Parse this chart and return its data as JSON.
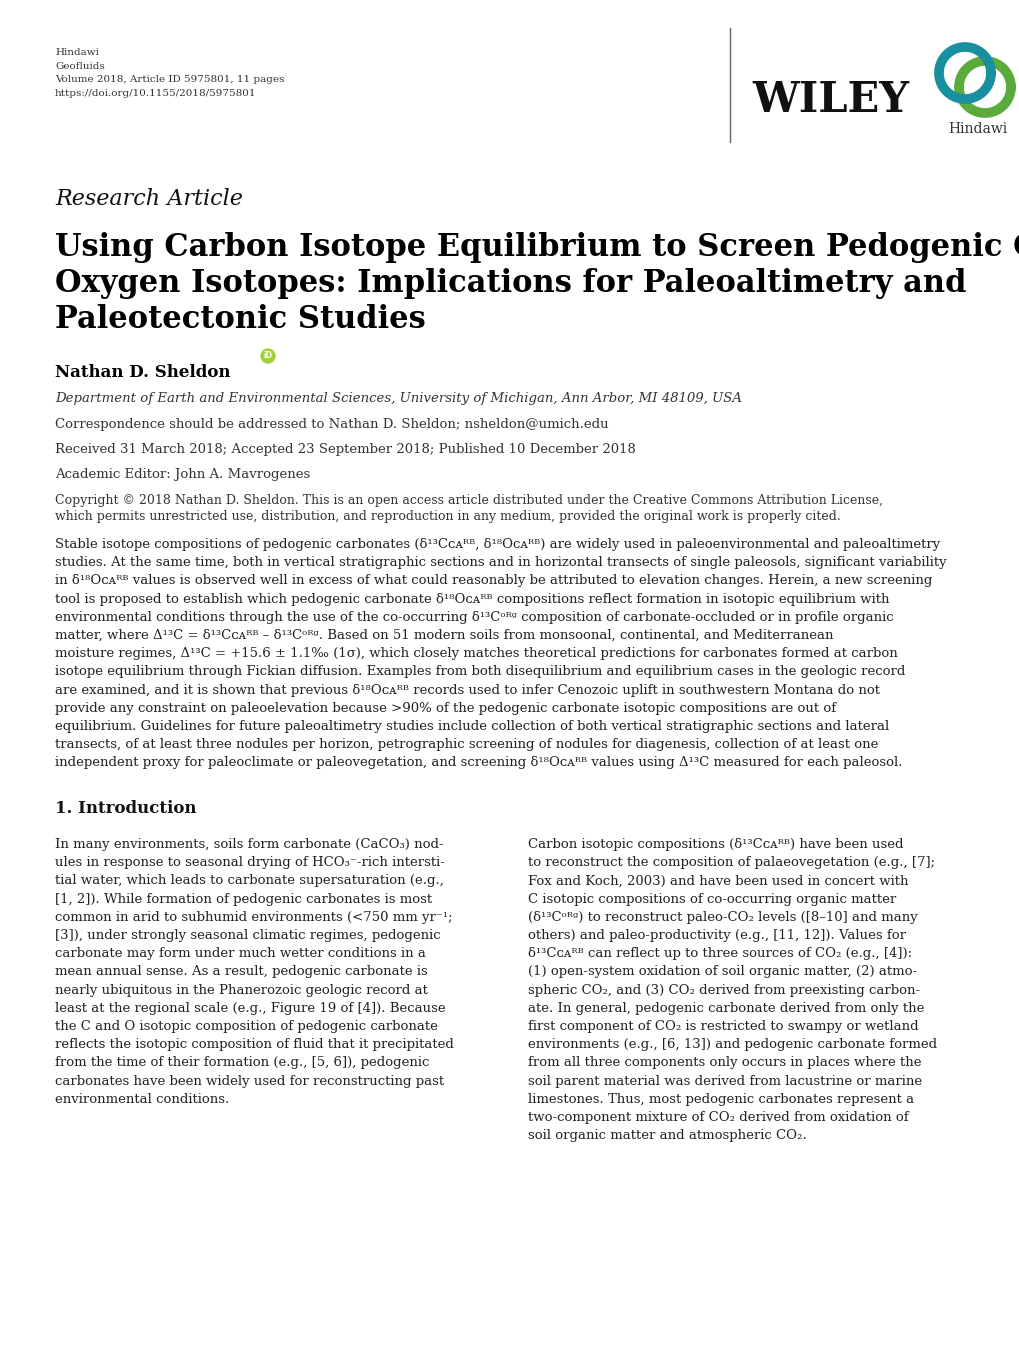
{
  "hindawi_text": "Hindawi\nGeofluids\nVolume 2018, Article ID 5975801, 11 pages\nhttps://doi.org/10.1155/2018/5975801",
  "research_article_label": "Research Article",
  "title_line1": "Using Carbon Isotope Equilibrium to Screen Pedogenic Carbonate",
  "title_line2": "Oxygen Isotopes: Implications for Paleoaltimetry and",
  "title_line3": "Paleotectonic Studies",
  "author": "Nathan D. Sheldon",
  "affiliation": "Department of Earth and Environmental Sciences, University of Michigan, Ann Arbor, MI 48109, USA",
  "correspondence": "Correspondence should be addressed to Nathan D. Sheldon; nsheldon@umich.edu",
  "received": "Received 31 March 2018; Accepted 23 September 2018; Published 10 December 2018",
  "academic_editor": "Academic Editor: John A. Mavrogenes",
  "copyright_line1": "Copyright © 2018 Nathan D. Sheldon. This is an open access article distributed under the Creative Commons Attribution License,",
  "copyright_line2": "which permits unrestricted use, distribution, and reproduction in any medium, provided the original work is properly cited.",
  "abstract_lines": [
    "Stable isotope compositions of pedogenic carbonates (δ¹³Cᴄᴀᴿᴮ, δ¹⁸Oᴄᴀᴿᴮ) are widely used in paleoenvironmental and paleoaltimetry",
    "studies. At the same time, both in vertical stratigraphic sections and in horizontal transects of single paleosols, significant variability",
    "in δ¹⁸Oᴄᴀᴿᴮ values is observed well in excess of what could reasonably be attributed to elevation changes. Herein, a new screening",
    "tool is proposed to establish which pedogenic carbonate δ¹⁸Oᴄᴀᴿᴮ compositions reflect formation in isotopic equilibrium with",
    "environmental conditions through the use of the co-occurring δ¹³Cᵒᴿᵍ composition of carbonate-occluded or in profile organic",
    "matter, where Δ¹³C = δ¹³Cᴄᴀᴿᴮ – δ¹³Cᵒᴿᵍ. Based on 51 modern soils from monsoonal, continental, and Mediterranean",
    "moisture regimes, Δ¹³C = +15.6 ± 1.1‰ (1σ), which closely matches theoretical predictions for carbonates formed at carbon",
    "isotope equilibrium through Fickian diffusion. Examples from both disequilibrium and equilibrium cases in the geologic record",
    "are examined, and it is shown that previous δ¹⁸Oᴄᴀᴿᴮ records used to infer Cenozoic uplift in southwestern Montana do not",
    "provide any constraint on paleoelevation because >90% of the pedogenic carbonate isotopic compositions are out of",
    "equilibrium. Guidelines for future paleoaltimetry studies include collection of both vertical stratigraphic sections and lateral",
    "transects, of at least three nodules per horizon, petrographic screening of nodules for diagenesis, collection of at least one",
    "independent proxy for paleoclimate or paleovegetation, and screening δ¹⁸Oᴄᴀᴿᴮ values using Δ¹³C measured for each paleosol."
  ],
  "section1_title": "1. Introduction",
  "col1_lines": [
    "In many environments, soils form carbonate (CaCO₃) nod-",
    "ules in response to seasonal drying of HCO₃⁻-rich intersti-",
    "tial water, which leads to carbonate supersaturation (e.g.,",
    "[1, 2]). While formation of pedogenic carbonates is most",
    "common in arid to subhumid environments (<750 mm yr⁻¹;",
    "[3]), under strongly seasonal climatic regimes, pedogenic",
    "carbonate may form under much wetter conditions in a",
    "mean annual sense. As a result, pedogenic carbonate is",
    "nearly ubiquitous in the Phanerozoic geologic record at",
    "least at the regional scale (e.g., Figure 19 of [4]). Because",
    "the C and O isotopic composition of pedogenic carbonate",
    "reflects the isotopic composition of fluid that it precipitated",
    "from the time of their formation (e.g., [5, 6]), pedogenic",
    "carbonates have been widely used for reconstructing past",
    "environmental conditions."
  ],
  "col2_lines": [
    "Carbon isotopic compositions (δ¹³Cᴄᴀᴿᴮ) have been used",
    "to reconstruct the composition of palaeovegetation (e.g., [7];",
    "Fox and Koch, 2003) and have been used in concert with",
    "C isotopic compositions of co-occurring organic matter",
    "(δ¹³Cᵒᴿᵍ) to reconstruct paleo-CO₂ levels ([8–10] and many",
    "others) and paleo-productivity (e.g., [11, 12]). Values for",
    "δ¹³Cᴄᴀᴿᴮ can reflect up to three sources of CO₂ (e.g., [4]):",
    "(1) open-system oxidation of soil organic matter, (2) atmo-",
    "spheric CO₂, and (3) CO₂ derived from preexisting carbon-",
    "ate. In general, pedogenic carbonate derived from only the",
    "first component of CO₂ is restricted to swampy or wetland",
    "environments (e.g., [6, 13]) and pedogenic carbonate formed",
    "from all three components only occurs in places where the",
    "soil parent material was derived from lacustrine or marine",
    "limestones. Thus, most pedogenic carbonates represent a",
    "two-component mixture of CO₂ derived from oxidation of",
    "soil organic matter and atmospheric CO₂."
  ],
  "background_color": "#ffffff",
  "text_color": "#000000",
  "hindawi_ring_teal": "#1a8fa0",
  "hindawi_ring_green": "#5aaa3c",
  "orcid_color": "#A6CE39"
}
